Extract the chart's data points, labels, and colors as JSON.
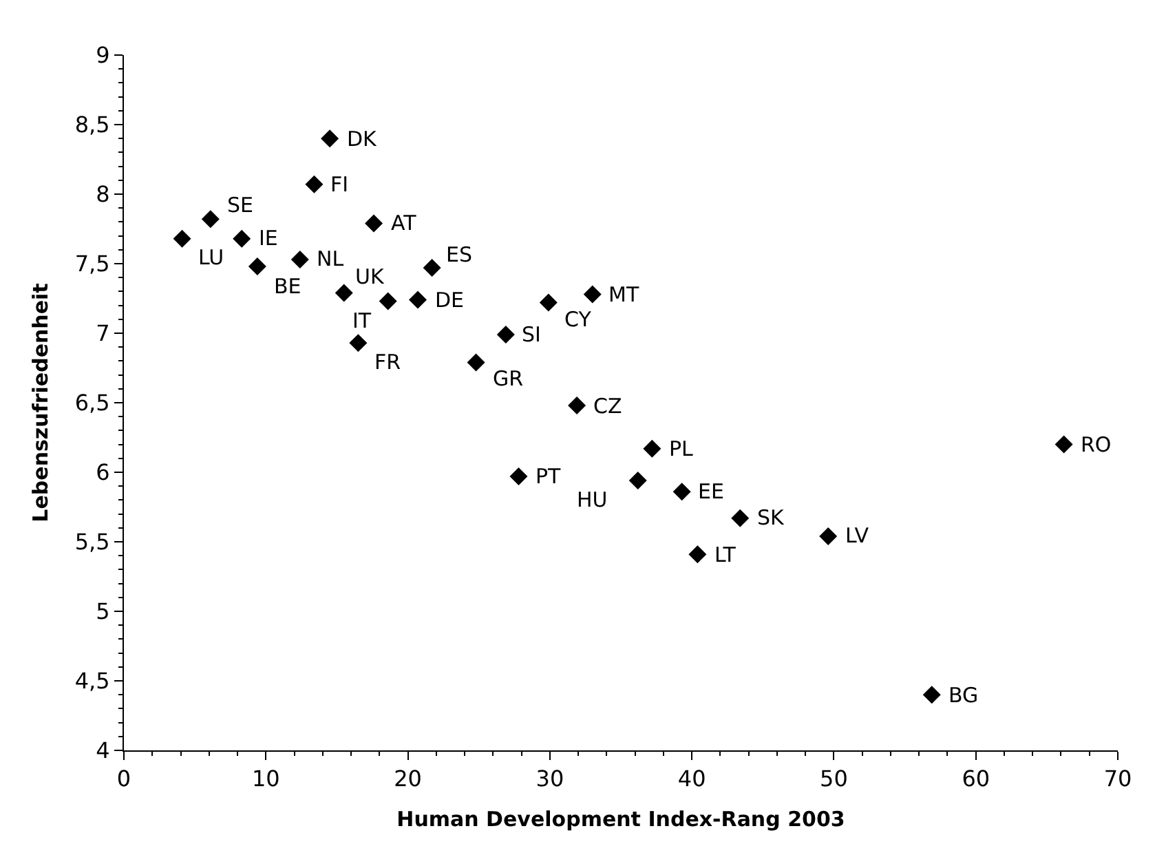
{
  "chart_data": {
    "type": "scatter",
    "xlabel": "Human Development Index-Rang 2003",
    "ylabel": "Lebenszufriedenheit",
    "x": [
      4.1,
      6.1,
      8.3,
      9.4,
      12.4,
      13.4,
      14.5,
      15.5,
      16.5,
      17.6,
      18.6,
      20.7,
      21.7,
      24.8,
      26.9,
      29.9,
      33,
      31.9,
      37.2,
      27.8,
      36.2,
      39.3,
      43.4,
      49.6,
      40.4,
      56.9,
      66.2
    ],
    "series": [
      {
        "color": "#000000",
        "values": [
          7.68,
          7.82,
          7.68,
          7.48,
          7.53,
          8.07,
          8.4,
          7.29,
          6.93,
          7.79,
          7.23,
          7.24,
          7.47,
          6.79,
          6.99,
          7.22,
          7.28,
          6.48,
          6.17,
          5.97,
          5.94,
          5.86,
          5.67,
          5.54,
          5.41,
          4.4,
          6.2
        ]
      }
    ],
    "annotations": [
      {
        "text": "LU",
        "x": 4.1,
        "y": 7.68
      },
      {
        "text": "SE",
        "x": 6.1,
        "y": 7.82
      },
      {
        "text": "IE",
        "x": 8.3,
        "y": 7.68
      },
      {
        "text": "BE",
        "x": 9.4,
        "y": 7.48
      },
      {
        "text": "NL",
        "x": 12.4,
        "y": 7.53
      },
      {
        "text": "FI",
        "x": 13.4,
        "y": 8.07
      },
      {
        "text": "DK",
        "x": 14.5,
        "y": 8.4
      },
      {
        "text": "UK",
        "x": 15.5,
        "y": 7.29
      },
      {
        "text": "FR",
        "x": 16.5,
        "y": 6.93
      },
      {
        "text": "AT",
        "x": 17.6,
        "y": 7.79
      },
      {
        "text": "IT",
        "x": 18.6,
        "y": 7.23
      },
      {
        "text": "DE",
        "x": 20.7,
        "y": 7.24
      },
      {
        "text": "ES",
        "x": 21.7,
        "y": 7.47
      },
      {
        "text": "GR",
        "x": 24.8,
        "y": 6.79
      },
      {
        "text": "SI",
        "x": 26.9,
        "y": 6.99
      },
      {
        "text": "CY",
        "x": 29.9,
        "y": 7.22
      },
      {
        "text": "MT",
        "x": 33,
        "y": 7.28
      },
      {
        "text": "CZ",
        "x": 31.9,
        "y": 6.48
      },
      {
        "text": "PL",
        "x": 37.2,
        "y": 6.17
      },
      {
        "text": "PT",
        "x": 27.8,
        "y": 5.97
      },
      {
        "text": "HU",
        "x": 36.2,
        "y": 5.94
      },
      {
        "text": "EE",
        "x": 39.3,
        "y": 5.86
      },
      {
        "text": "SK",
        "x": 43.4,
        "y": 5.67
      },
      {
        "text": "LV",
        "x": 49.6,
        "y": 5.54
      },
      {
        "text": "LT",
        "x": 40.4,
        "y": 5.41
      },
      {
        "text": "BG",
        "x": 56.9,
        "y": 4.4
      },
      {
        "text": "RO",
        "x": 66.2,
        "y": 6.2
      }
    ],
    "xlim": [
      0,
      70
    ],
    "xticks": [
      0,
      10,
      20,
      30,
      40,
      50,
      60,
      70
    ],
    "ylim": [
      4,
      9
    ],
    "yticks": [
      4,
      {
        "value": 4.5,
        "label": "4,5"
      },
      5,
      {
        "value": 5.5,
        "label": "5,5"
      },
      6,
      {
        "value": 6.5,
        "label": "6,5"
      },
      7,
      {
        "value": 7.5,
        "label": "7,5"
      },
      8,
      {
        "value": 8.5,
        "label": "8,5"
      },
      9
    ],
    "marker": "diamond"
  }
}
